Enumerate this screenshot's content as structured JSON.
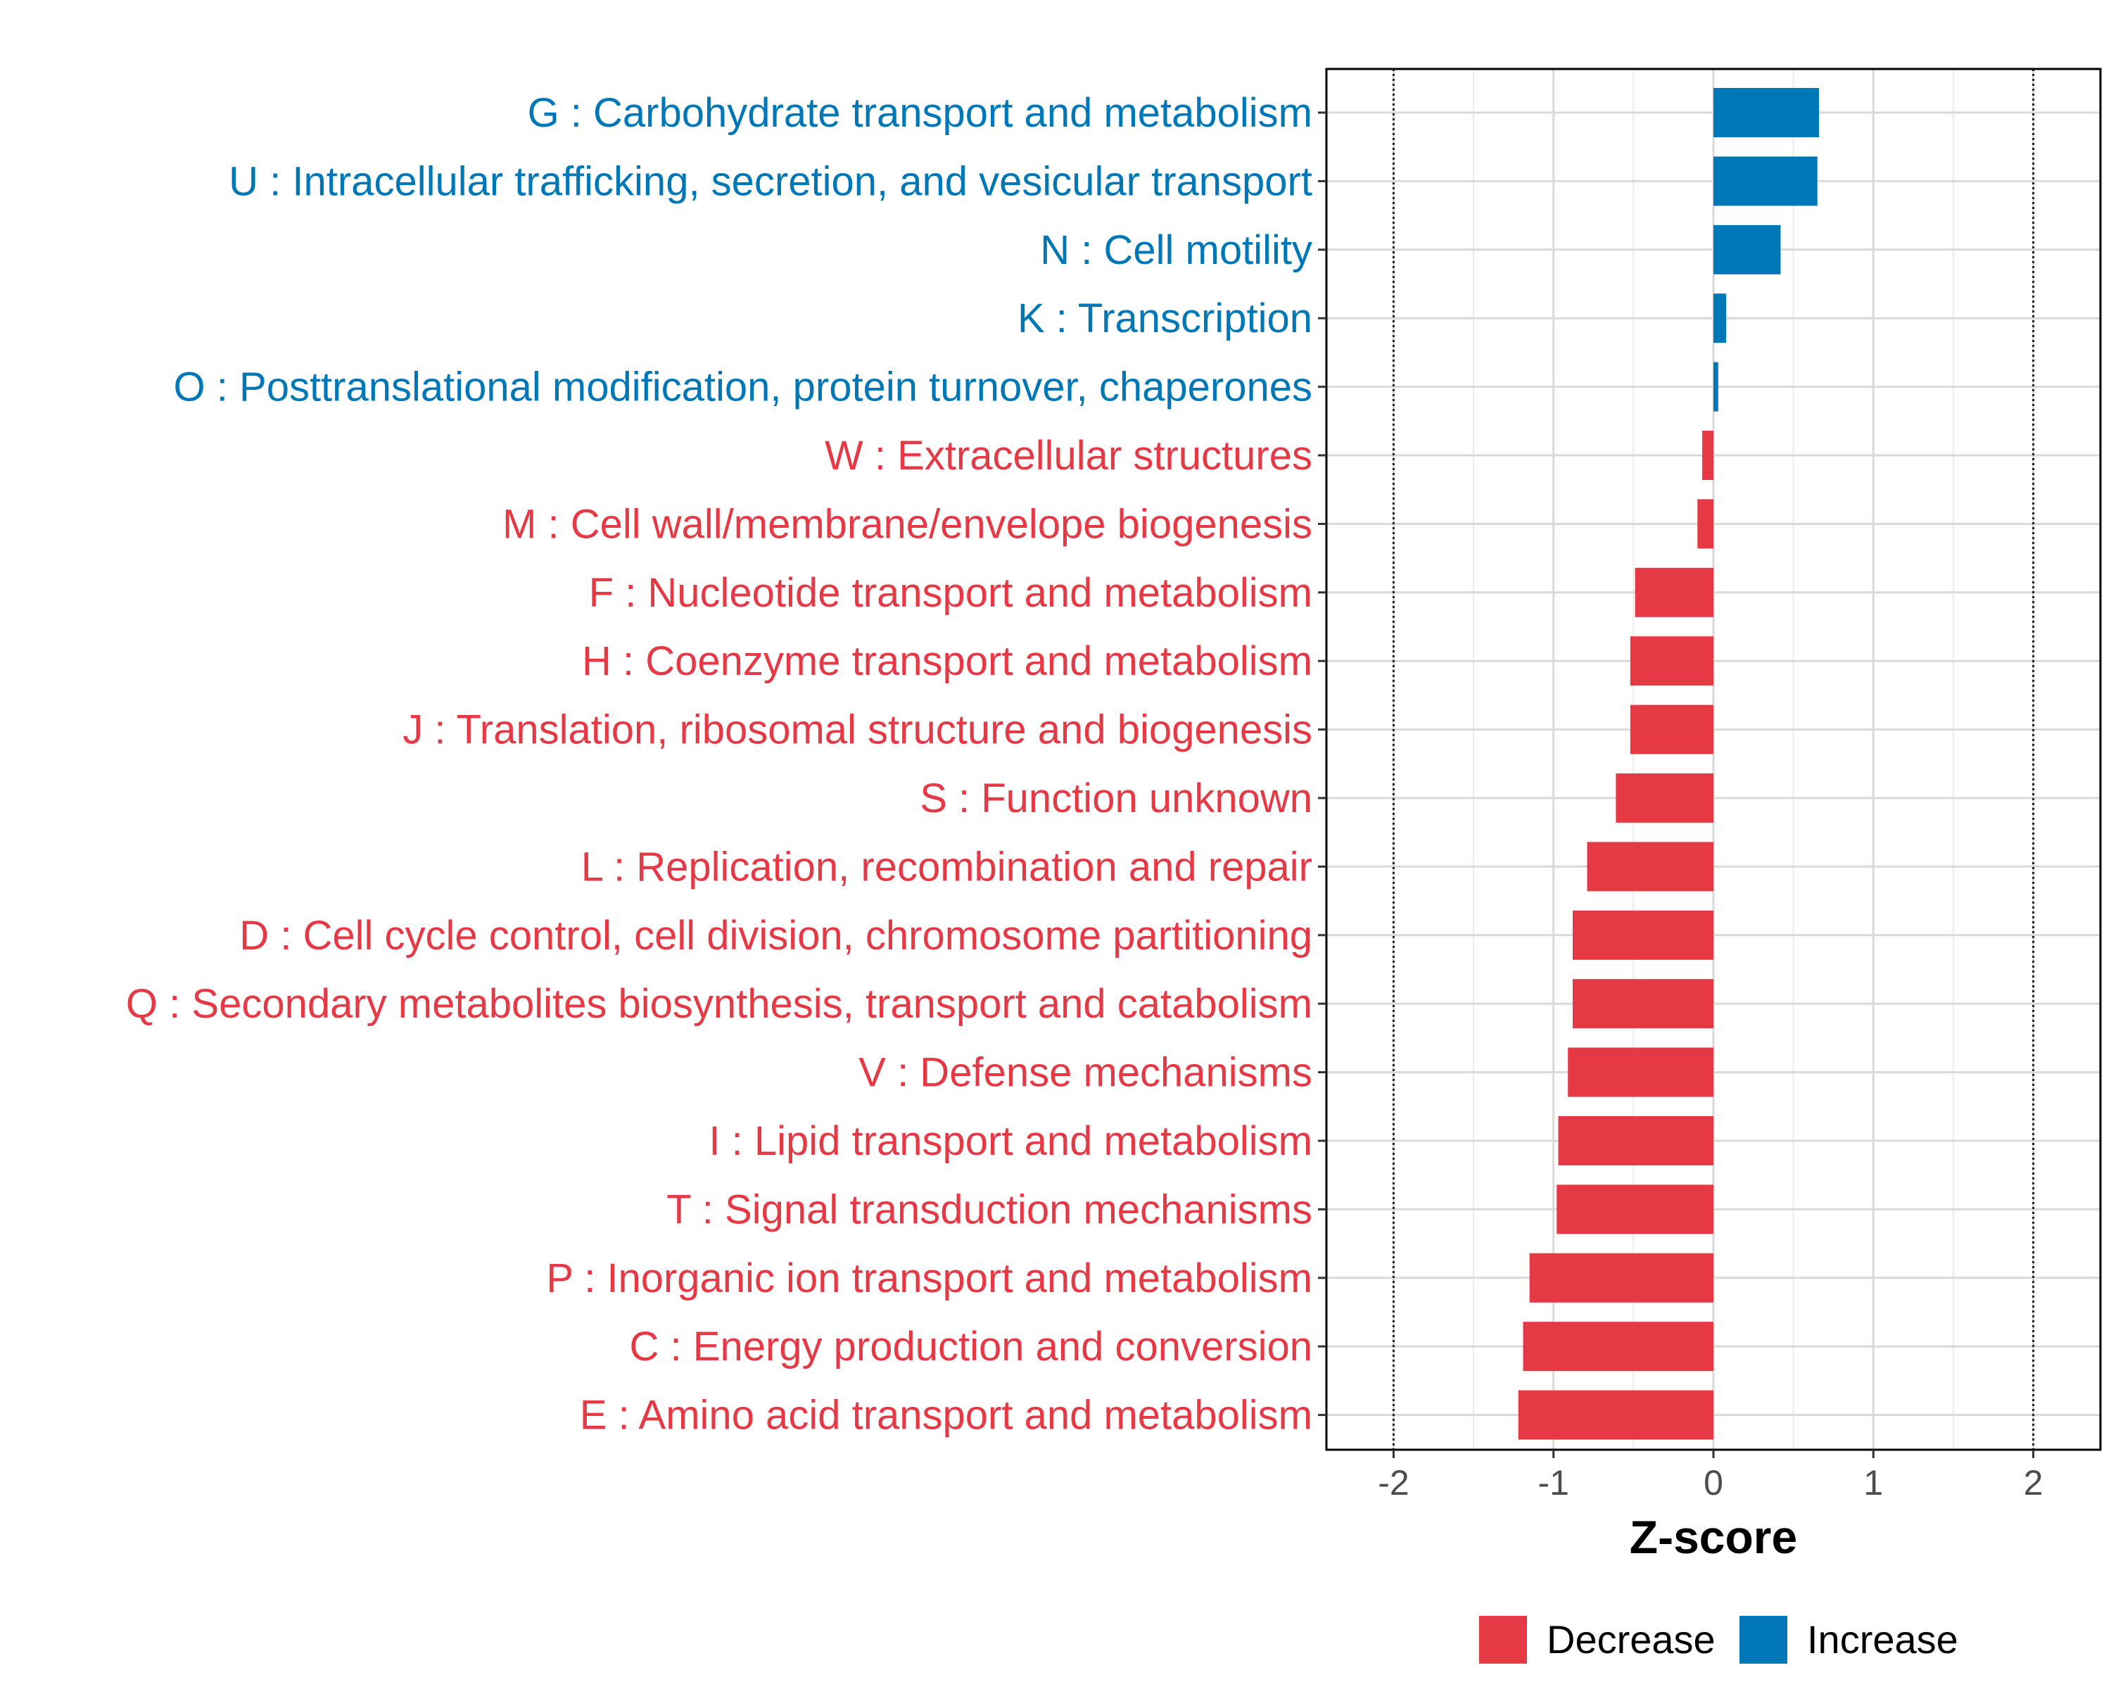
{
  "chart_data": {
    "type": "bar",
    "orientation": "horizontal",
    "xlabel": "Z-score",
    "xlim": [
      -2.42,
      2.42
    ],
    "xticks": [
      -2,
      -1,
      0,
      1,
      2
    ],
    "xtick_labels": [
      "-2",
      "-1",
      "0",
      "1",
      "2"
    ],
    "reference_lines": [
      -2,
      2
    ],
    "grid": true,
    "legend_position": "bottom",
    "colors": {
      "Decrease": "#e63946",
      "Increase": "#0077b6"
    },
    "legend": [
      {
        "label": "Decrease",
        "color": "#e63946"
      },
      {
        "label": "Increase",
        "color": "#0077b6"
      }
    ],
    "categories": [
      "G : Carbohydrate transport and metabolism",
      "U : Intracellular trafficking, secretion, and vesicular transport",
      "N : Cell motility",
      "K : Transcription",
      "O : Posttranslational modification, protein turnover, chaperones",
      "W : Extracellular structures",
      "M : Cell wall/membrane/envelope biogenesis",
      "F : Nucleotide transport and metabolism",
      "H : Coenzyme transport and metabolism",
      "J : Translation, ribosomal structure and biogenesis",
      "S : Function unknown",
      "L : Replication, recombination and repair",
      "D : Cell cycle control, cell division, chromosome partitioning",
      "Q : Secondary metabolites biosynthesis, transport and catabolism",
      "V : Defense mechanisms",
      "I : Lipid transport and metabolism",
      "T : Signal transduction mechanisms",
      "P : Inorganic ion transport and metabolism",
      "C : Energy production and conversion",
      "E : Amino acid transport and metabolism"
    ],
    "values": [
      0.66,
      0.65,
      0.42,
      0.08,
      0.03,
      -0.07,
      -0.1,
      -0.49,
      -0.52,
      -0.52,
      -0.61,
      -0.79,
      -0.88,
      -0.88,
      -0.91,
      -0.97,
      -0.98,
      -1.15,
      -1.19,
      -1.22
    ],
    "groups": [
      "Increase",
      "Increase",
      "Increase",
      "Increase",
      "Increase",
      "Decrease",
      "Decrease",
      "Decrease",
      "Decrease",
      "Decrease",
      "Decrease",
      "Decrease",
      "Decrease",
      "Decrease",
      "Decrease",
      "Decrease",
      "Decrease",
      "Decrease",
      "Decrease",
      "Decrease"
    ]
  }
}
